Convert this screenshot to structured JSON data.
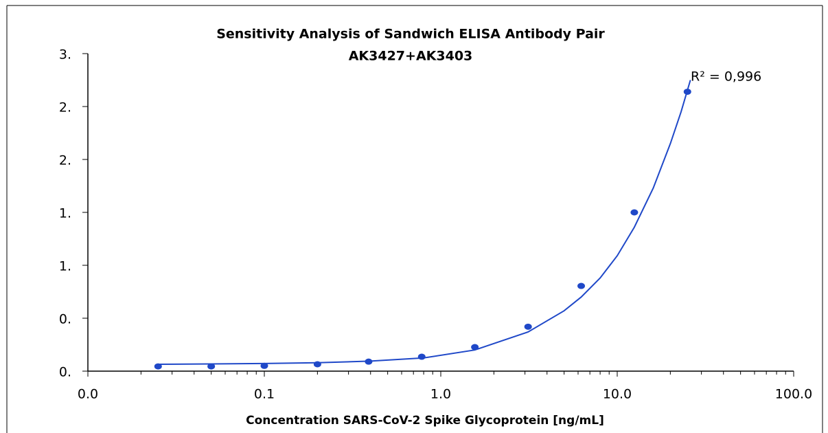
{
  "chart_data": {
    "type": "scatter",
    "title": "Sensitivity Analysis of Sandwich ELISA Antibody Pair",
    "subtitle": "AK3427+AK3403",
    "x_label": "Concentration SARS-CoV-2 Spike Glycoprotein [ng/mL]",
    "annotation": "R² = 0,996",
    "xscale": "log",
    "minor_ticks": true,
    "xlim": [
      0.01,
      100
    ],
    "xticks": [
      {
        "value": 0.01,
        "label": "0.0"
      },
      0.1,
      {
        "value": 1,
        "label": "1.0"
      },
      {
        "value": 10,
        "label": "10.0"
      },
      {
        "value": 100,
        "label": "100.0"
      }
    ],
    "ylim": [
      0,
      3
    ],
    "yticks": [
      {
        "value": 0,
        "label": "0."
      },
      {
        "value": 0.5,
        "label": "0."
      },
      {
        "value": 1,
        "label": "1."
      },
      {
        "value": 1.5,
        "label": "1."
      },
      {
        "value": 2,
        "label": "2."
      },
      {
        "value": 2.5,
        "label": "2."
      },
      {
        "value": 3,
        "label": "3."
      }
    ],
    "series": [
      {
        "color": "#1f48c8",
        "x": [
          0.025,
          0.05,
          0.1,
          0.2,
          0.39,
          0.78,
          1.56,
          3.125,
          6.25,
          12.5,
          25
        ],
        "values": [
          0.045,
          0.045,
          0.05,
          0.065,
          0.09,
          0.136,
          0.227,
          0.42,
          0.805,
          1.5,
          2.64
        ]
      },
      {
        "type": "line",
        "color": "#1f48c8",
        "x": [
          0.025,
          0.05,
          0.1,
          0.2,
          0.4,
          0.8,
          1.56,
          3.125,
          5,
          6.25,
          8,
          10,
          12.5,
          16,
          20,
          23,
          26
        ],
        "values": [
          0.065,
          0.068,
          0.072,
          0.08,
          0.095,
          0.125,
          0.2,
          0.37,
          0.57,
          0.7,
          0.88,
          1.09,
          1.36,
          1.73,
          2.15,
          2.45,
          2.75
        ]
      }
    ]
  }
}
